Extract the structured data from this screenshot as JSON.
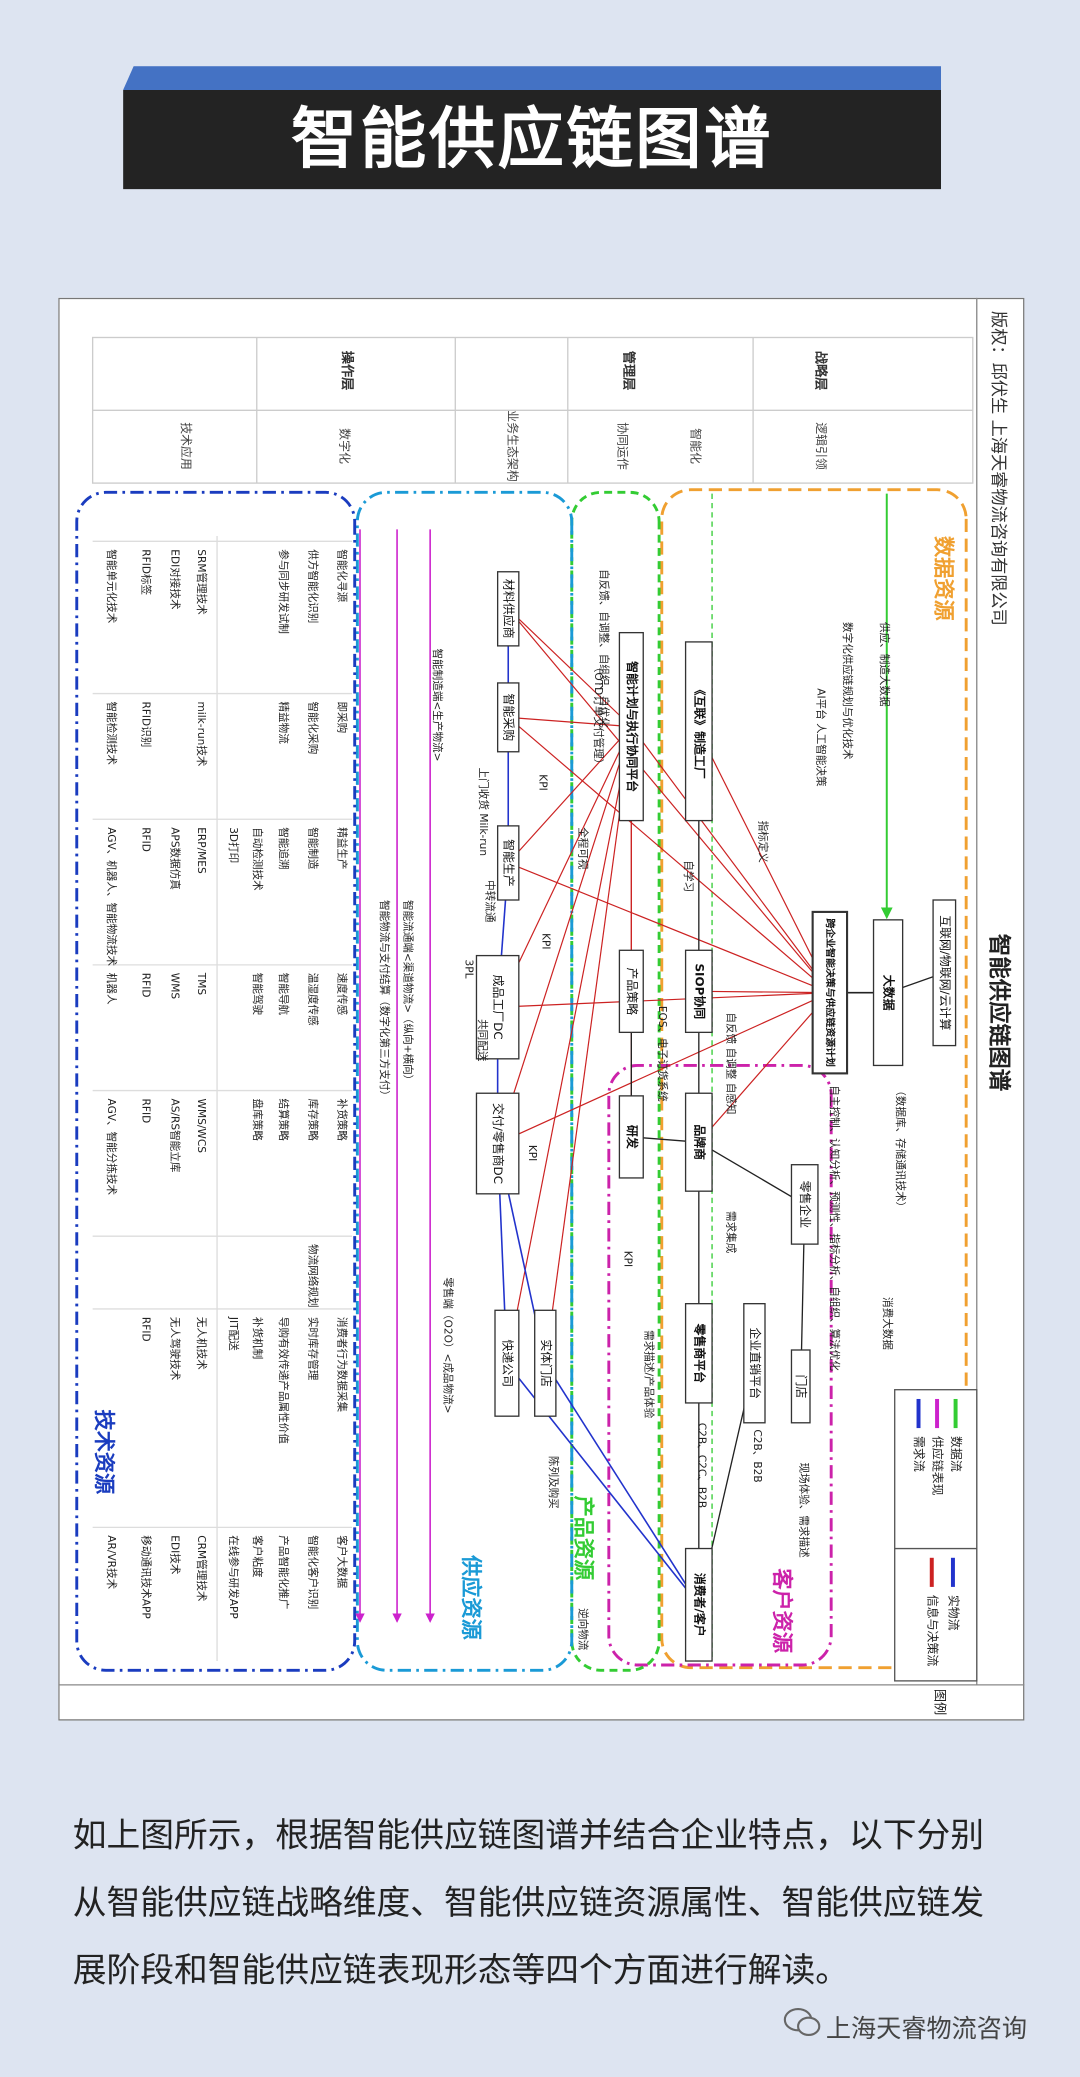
{
  "header": {
    "title": "智能供应链图谱"
  },
  "diagram": {
    "title": "智能供应链图谱",
    "copyright": "版权：邱伏生 上海天睿物流咨询有限公司",
    "layers": [
      {
        "name": "战略层",
        "items": [
          "逻辑引领",
          "智能化"
        ]
      },
      {
        "name": "管理层",
        "items": [
          "协同运作",
          "业务生态架构"
        ]
      },
      {
        "name": "操作层",
        "items": [
          "数字化",
          "技术应用"
        ]
      }
    ],
    "regions": [
      {
        "label": "数据资源",
        "color": "#f0a030"
      },
      {
        "label": "客户资源",
        "color": "#cc22aa"
      },
      {
        "label": "产品资源",
        "color": "#33cc33"
      },
      {
        "label": "供应资源",
        "color": "#1a9ad6"
      },
      {
        "label": "技术资源",
        "color": "#1a3cbf"
      }
    ],
    "nodes": [
      "互联网/物联网/云计算",
      "大数据",
      "跨企业智能决策与供应链资源计划",
      "《互联》制造工厂",
      "SIOP协同",
      "品牌商",
      "零售商平台",
      "消费者/客户",
      "零售企业",
      "企业直销平台",
      "门店",
      "智能计划与执行协同平台",
      "产品策略",
      "研发",
      "材料供应商",
      "智能采购",
      "智能生产",
      "成品工厂DC",
      "交付/零售商DC",
      "快递公司",
      "实体门店"
    ],
    "notes": [
      "供应、制造大数据",
      "数字化供应链规划与优化技术",
      "AI平台 人工智能决策",
      "指标定义",
      "消费大数据",
      "（数据库、存储通讯技术）",
      "自主控制、认知分析、预测性、指标分析、自组织、算法优化",
      "需求集成",
      "需求描述/产品体验",
      "C2B、C2C、B2B",
      "C2B、B2B",
      "现场体验、需求描述",
      "陈列及购买",
      "逆向物流",
      "智能制造端<生产物流>",
      "智能流通端<渠道物流>（纵向+横向）",
      "智能物流与支付结算（数字化第三方支付）",
      "零售端（O2O）<成品物流>",
      "自反馈、自调整、自组织、自优化",
      "（OTD订单交付管理）",
      "全程可视",
      "自学习",
      "EOS、电子订货系统",
      "上门收货 Milk-run",
      "中转流通",
      "共同配送",
      "3PL",
      "KPI",
      "KPI",
      "KPI",
      "KPI",
      "自反馈 自调整 自感知"
    ],
    "tech_table": {
      "rows": [
        [
          "智能化寻源",
          "即采购",
          "精益生产",
          "速度传感",
          "补货策略",
          null,
          "消费者行为数据采集",
          "客户大数据"
        ],
        [
          "供方智能化识别",
          "智能化采购",
          "智能制造",
          "温湿度传感",
          "库存策略",
          "物流网络规划",
          "实时库存管理",
          "智能化客户识别"
        ],
        [
          "参与同步研发试制",
          "精益物流",
          "智能追溯",
          "智能导航",
          "结算策略",
          null,
          "导购有效传递产品属性价值",
          "产品智能化推广"
        ],
        [
          null,
          null,
          "自动检测技术",
          "智能驾驶",
          "盘库策略",
          null,
          "补货机制",
          "客户粘度"
        ],
        [
          null,
          null,
          "3D打印",
          null,
          null,
          null,
          "JIT配送",
          "在线参与研发APP"
        ],
        [
          "SRM管理技术",
          "milk-run技术",
          "ERP/MES",
          "TMS",
          "WMS/WCS",
          null,
          "无人机技术",
          "CRM管理技术"
        ],
        [
          "EDI对接技术",
          null,
          "APS数据仿真",
          "WMS",
          "AS/RS智能立库",
          null,
          "无人驾驶技术",
          "EDI技术"
        ],
        [
          "RFID标签",
          "RFID识别",
          "RFID",
          "RFID",
          "RFID",
          null,
          "RFID",
          "移动通讯技术APP"
        ],
        [
          "智能单元化技术",
          "智能检测技术",
          "AGV、机器人、智能物流技术",
          "机器人",
          "AGV、智能分拣技术",
          null,
          null,
          "AR/VR技术"
        ]
      ]
    },
    "legend": {
      "title": "图例",
      "items": [
        {
          "label": "数据流",
          "color": "#33cc33"
        },
        {
          "label": "供应链表现",
          "color": "#cc22cc"
        },
        {
          "label": "需求流",
          "color": "#2233cc"
        },
        {
          "label": "实物流",
          "color": "#2233cc"
        },
        {
          "label": "信息与决策流",
          "color": "#cc2222"
        }
      ]
    }
  },
  "article": {
    "paragraph": "如上图所示，根据智能供应链图谱并结合企业特点，以下分别从智能供应链战略维度、智能供应链资源属性、智能供应链发展阶段和智能供应链表现形态等四个方面进行解读。",
    "watermark": "上海天睿物流咨询"
  }
}
